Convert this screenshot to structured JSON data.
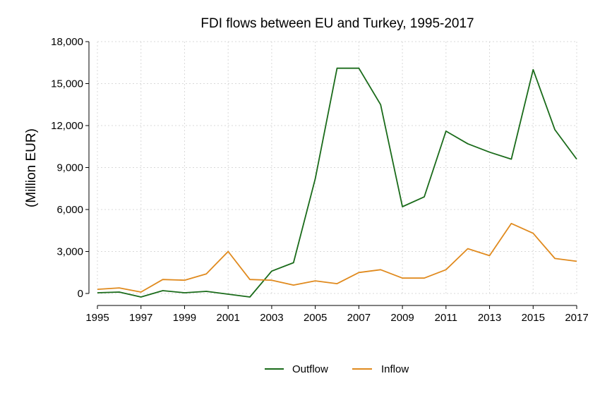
{
  "chart_data": {
    "type": "line",
    "title": "FDI flows between EU and Turkey, 1995-2017",
    "xlabel": "",
    "ylabel": "(Million EUR)",
    "x": [
      1995,
      1996,
      1997,
      1998,
      1999,
      2000,
      2001,
      2002,
      2003,
      2004,
      2005,
      2006,
      2007,
      2008,
      2009,
      2010,
      2011,
      2012,
      2013,
      2014,
      2015,
      2016,
      2017
    ],
    "xticks": [
      "1995",
      "1997",
      "1999",
      "2001",
      "2003",
      "2005",
      "2007",
      "2009",
      "2011",
      "2013",
      "2015",
      "2017"
    ],
    "xlim": [
      1995,
      2017
    ],
    "ylim": [
      0,
      18000
    ],
    "yticks": [
      "0",
      "3,000",
      "6,000",
      "9,000",
      "12,000",
      "15,000",
      "18,000"
    ],
    "grid": true,
    "legend_position": "bottom",
    "series": [
      {
        "name": "Outflow",
        "color": "#1a6b1a",
        "values": [
          50,
          100,
          -250,
          200,
          50,
          150,
          -50,
          -250,
          1600,
          2200,
          8200,
          16100,
          16100,
          13500,
          6200,
          6900,
          11600,
          10700,
          10100,
          9600,
          16000,
          11700,
          9600
        ]
      },
      {
        "name": "Inflow",
        "color": "#e08a1e",
        "values": [
          300,
          400,
          100,
          1000,
          950,
          1400,
          3000,
          1000,
          950,
          600,
          900,
          700,
          1500,
          1700,
          1100,
          1100,
          1700,
          3200,
          2700,
          5000,
          4300,
          2500,
          2300
        ]
      }
    ]
  }
}
